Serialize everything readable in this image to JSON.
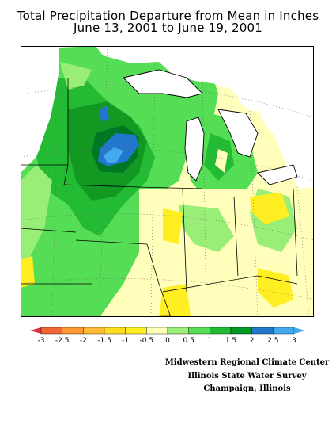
{
  "title": {
    "line1": "Total Precipitation Departure from Mean in Inches",
    "line2": "June 13, 2001 to June 19, 2001"
  },
  "colors": {
    "ocean": "#ffffff",
    "neutral": "#ffffbb",
    "green_light": "#99ee77",
    "green": "#55dd55",
    "green_mid": "#22bb33",
    "green_dark": "#119922",
    "green_deep": "#007722",
    "blue": "#2277cc",
    "blue_light": "#44aaee",
    "yellow": "#ffee22",
    "border": "#000000"
  },
  "legend": {
    "colors": [
      "#dd3344",
      "#ee6633",
      "#ff9933",
      "#ffbb33",
      "#ffdd22",
      "#ffee22",
      "#ffffbb",
      "#99ee77",
      "#55dd55",
      "#22bb33",
      "#009922",
      "#2277cc",
      "#44aaee"
    ],
    "ticks": [
      "-3",
      "-2.5",
      "-2",
      "-1.5",
      "-1",
      "-0.5",
      "0",
      "0.5",
      "1",
      "1.5",
      "2",
      "2.5",
      "3"
    ]
  },
  "credit": {
    "line1": "Midwestern Regional Climate Center",
    "line2": "Illinois State Water Survey",
    "line3": "Champaign, Illinois"
  }
}
